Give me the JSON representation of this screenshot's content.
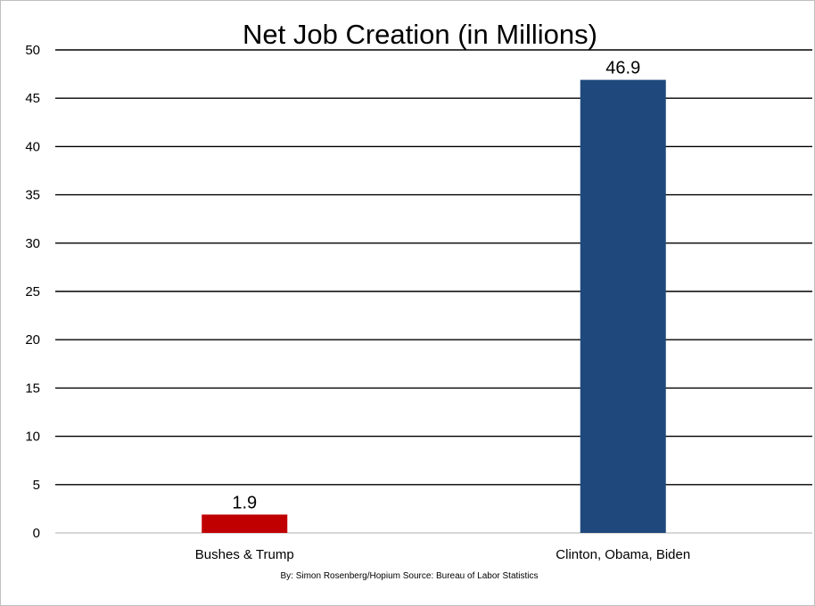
{
  "chart_data": {
    "type": "bar",
    "title": "Net Job Creation (in Millions)",
    "categories": [
      "Bushes & Trump",
      "Clinton, Obama, Biden"
    ],
    "values": [
      1.9,
      46.9
    ],
    "data_labels": [
      "1.9",
      "46.9"
    ],
    "bar_colors": [
      "#c00000",
      "#1f497d"
    ],
    "ylim": [
      0,
      50
    ],
    "yticks": [
      0,
      5,
      10,
      15,
      20,
      25,
      30,
      35,
      40,
      45,
      50
    ],
    "grid": true,
    "legend": "none",
    "xlabel": "",
    "ylabel": "",
    "footnote": "By: Simon Rosenberg/Hopium Source: Bureau of Labor Statistics"
  }
}
